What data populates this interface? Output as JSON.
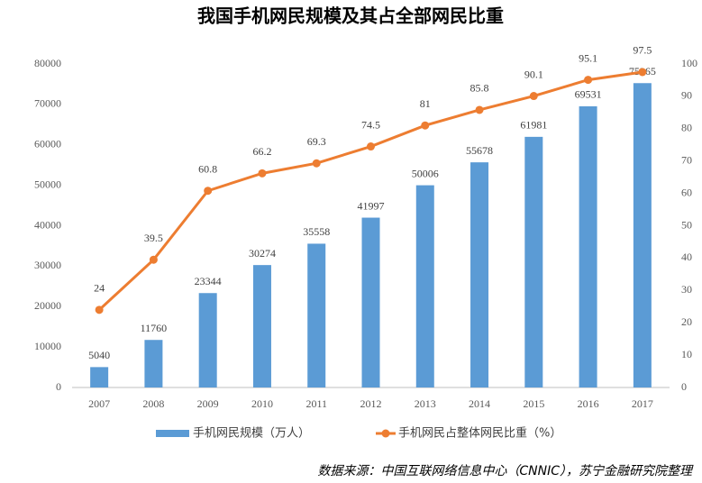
{
  "chart_data": {
    "type": "bar",
    "title": "我国手机网民规模及其占全部网民比重",
    "categories": [
      "2007",
      "2008",
      "2009",
      "2010",
      "2011",
      "2012",
      "2013",
      "2014",
      "2015",
      "2016",
      "2017"
    ],
    "series": [
      {
        "name": "手机网民规模（万人）",
        "type": "bar",
        "color": "#5b9bd5",
        "values": [
          5040,
          11760,
          23344,
          30274,
          35558,
          41997,
          50006,
          55678,
          61981,
          69531,
          75265
        ]
      },
      {
        "name": "手机网民占整体网民比重（%）",
        "type": "line",
        "axis": "y2",
        "color": "#ed7d31",
        "values": [
          24,
          39.5,
          60.8,
          66.2,
          69.3,
          74.5,
          81,
          85.8,
          90.1,
          95.1,
          97.5
        ]
      }
    ],
    "ylim": [
      0,
      80000
    ],
    "yticks": [
      0,
      10000,
      20000,
      30000,
      40000,
      50000,
      60000,
      70000,
      80000
    ],
    "y2lim": [
      0,
      100
    ],
    "y2ticks": [
      0,
      10,
      20,
      30,
      40,
      50,
      60,
      70,
      80,
      90,
      100
    ],
    "grid": false,
    "legend": "bottom",
    "source": "数据来源：中国互联网络信息中心（CNNIC），苏宁金融研究院整理"
  }
}
